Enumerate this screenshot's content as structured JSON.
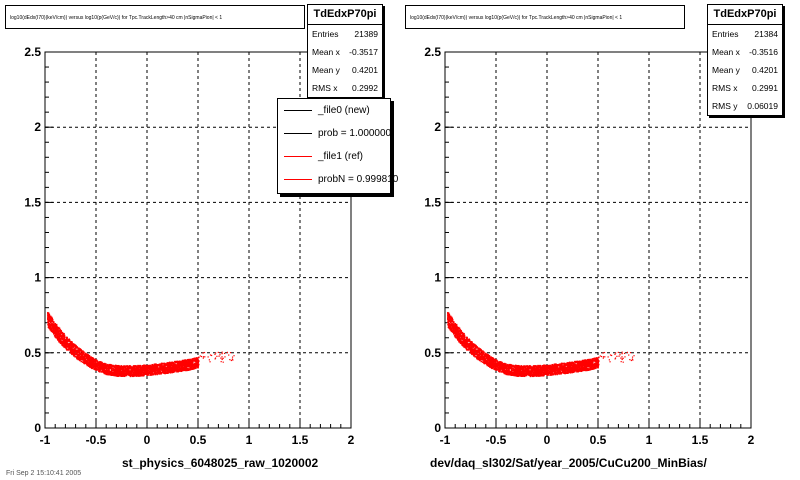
{
  "chart_data": [
    {
      "type": "scatter",
      "title": "log10(dEdx(I70)(keV/cm)) versus log10(p(GeV/c)) for Tpc.TrackLength>40 cm |nSigmaPion| < 1",
      "xlabel": "st_physics_6048025_raw_1020002",
      "ylabel": "",
      "xlim": [
        -1,
        2
      ],
      "ylim": [
        0,
        2.5
      ],
      "x_ticks": [
        "-1",
        "-0.5",
        "0",
        "0.5",
        "1",
        "1.5",
        "2"
      ],
      "y_ticks": [
        "0",
        "0.5",
        "1",
        "1.5",
        "2",
        "2.5"
      ],
      "grid": true,
      "band": {
        "x": [
          -0.98,
          -0.9,
          -0.8,
          -0.7,
          -0.6,
          -0.5,
          -0.4,
          -0.3,
          -0.2,
          -0.1,
          0.0,
          0.1,
          0.2,
          0.3,
          0.4,
          0.5
        ],
        "y": [
          0.73,
          0.65,
          0.57,
          0.51,
          0.46,
          0.42,
          0.395,
          0.385,
          0.383,
          0.385,
          0.39,
          0.397,
          0.405,
          0.415,
          0.425,
          0.44
        ]
      },
      "stats": {
        "name": "TdEdxP70pi",
        "rows": [
          {
            "label": "Entries",
            "value": "21389"
          },
          {
            "label": "Mean x",
            "value": "-0.3517"
          },
          {
            "label": "Mean y",
            "value": "0.4201"
          },
          {
            "label": "RMS x",
            "value": "0.2992"
          }
        ]
      },
      "legend": [
        {
          "label": "_file0 (new)",
          "color": "#000000"
        },
        {
          "label": "prob = 1.000000",
          "color": "#000000"
        },
        {
          "label": "_file1 (ref)",
          "color": "#ff0000"
        },
        {
          "label": "probN = 0.999810",
          "color": "#ff0000"
        }
      ]
    },
    {
      "type": "scatter",
      "title": "log10(dEdx(I70)(keV/cm)) versus log10(p(GeV/c)) for Tpc.TrackLength>40 cm |nSigmaPion| < 1",
      "xlabel": "dev/daq_sl302/Sat/year_2005/CuCu200_MinBias/",
      "ylabel": "",
      "xlim": [
        -1,
        2
      ],
      "ylim": [
        0,
        2.5
      ],
      "x_ticks": [
        "-1",
        "-0.5",
        "0",
        "0.5",
        "1",
        "1.5",
        "2"
      ],
      "y_ticks": [
        "0",
        "0.5",
        "1",
        "1.5",
        "2",
        "2.5"
      ],
      "grid": true,
      "band": {
        "x": [
          -0.98,
          -0.9,
          -0.8,
          -0.7,
          -0.6,
          -0.5,
          -0.4,
          -0.3,
          -0.2,
          -0.1,
          0.0,
          0.1,
          0.2,
          0.3,
          0.4,
          0.5
        ],
        "y": [
          0.73,
          0.65,
          0.57,
          0.51,
          0.46,
          0.42,
          0.395,
          0.385,
          0.383,
          0.385,
          0.39,
          0.397,
          0.405,
          0.415,
          0.425,
          0.44
        ]
      },
      "stats": {
        "name": "TdEdxP70pi",
        "rows": [
          {
            "label": "Entries",
            "value": "21384"
          },
          {
            "label": "Mean x",
            "value": "-0.3516"
          },
          {
            "label": "Mean y",
            "value": "0.4201"
          },
          {
            "label": "RMS x",
            "value": "0.2991"
          },
          {
            "label": "RMS y",
            "value": "0.06019"
          }
        ]
      }
    }
  ],
  "colors": {
    "marker": "#ff0000",
    "grid": "#000000"
  },
  "footer": "Fri Sep  2 15:10:41 2005"
}
